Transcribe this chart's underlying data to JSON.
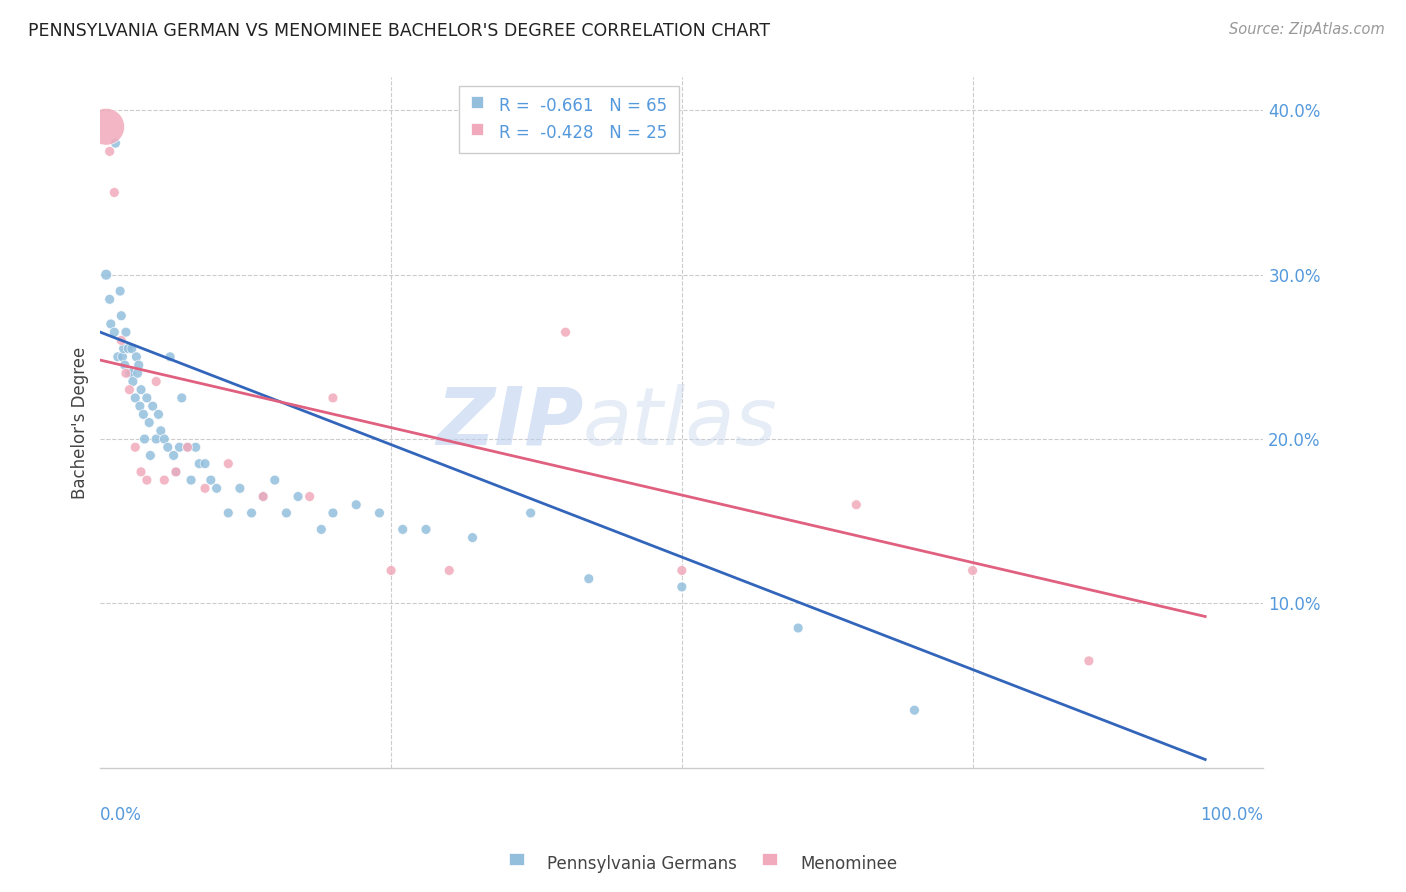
{
  "title": "PENNSYLVANIA GERMAN VS MENOMINEE BACHELOR'S DEGREE CORRELATION CHART",
  "source": "Source: ZipAtlas.com",
  "ylabel": "Bachelor's Degree",
  "watermark_zip": "ZIP",
  "watermark_atlas": "atlas",
  "blue_legend_r": "R = ",
  "blue_legend_rv": "-0.661",
  "blue_legend_n": "  N = 65",
  "pink_legend_r": "R = ",
  "pink_legend_rv": "-0.428",
  "pink_legend_n": "  N = 25",
  "blue_label": "Pennsylvania Germans",
  "pink_label": "Menominee",
  "xlim": [
    0,
    1.0
  ],
  "ylim": [
    0,
    0.42
  ],
  "yticks": [
    0.1,
    0.2,
    0.3,
    0.4
  ],
  "ytick_labels": [
    "10.0%",
    "20.0%",
    "30.0%",
    "40.0%"
  ],
  "blue_color": "#93bfdd",
  "pink_color": "#f0aabb",
  "blue_line_color": "#3366bb",
  "pink_line_color": "#e06080",
  "tick_color": "#5599dd",
  "grid_color": "#cccccc",
  "background_color": "#ffffff",
  "blue_scatter_x": [
    0.005,
    0.008,
    0.009,
    0.012,
    0.013,
    0.015,
    0.017,
    0.018,
    0.019,
    0.02,
    0.021,
    0.022,
    0.024,
    0.025,
    0.026,
    0.027,
    0.028,
    0.03,
    0.031,
    0.032,
    0.033,
    0.034,
    0.035,
    0.037,
    0.038,
    0.04,
    0.042,
    0.043,
    0.045,
    0.048,
    0.05,
    0.052,
    0.055,
    0.058,
    0.06,
    0.063,
    0.065,
    0.068,
    0.07,
    0.075,
    0.078,
    0.082,
    0.085,
    0.09,
    0.095,
    0.1,
    0.11,
    0.12,
    0.13,
    0.14,
    0.15,
    0.16,
    0.17,
    0.19,
    0.2,
    0.22,
    0.24,
    0.26,
    0.28,
    0.32,
    0.37,
    0.42,
    0.5,
    0.6,
    0.7
  ],
  "blue_scatter_y": [
    0.3,
    0.285,
    0.27,
    0.265,
    0.38,
    0.25,
    0.29,
    0.275,
    0.25,
    0.255,
    0.245,
    0.265,
    0.255,
    0.24,
    0.24,
    0.255,
    0.235,
    0.225,
    0.25,
    0.24,
    0.245,
    0.22,
    0.23,
    0.215,
    0.2,
    0.225,
    0.21,
    0.19,
    0.22,
    0.2,
    0.215,
    0.205,
    0.2,
    0.195,
    0.25,
    0.19,
    0.18,
    0.195,
    0.225,
    0.195,
    0.175,
    0.195,
    0.185,
    0.185,
    0.175,
    0.17,
    0.155,
    0.17,
    0.155,
    0.165,
    0.175,
    0.155,
    0.165,
    0.145,
    0.155,
    0.16,
    0.155,
    0.145,
    0.145,
    0.14,
    0.155,
    0.115,
    0.11,
    0.085,
    0.035
  ],
  "blue_scatter_sizes": [
    60,
    50,
    50,
    50,
    50,
    50,
    50,
    50,
    50,
    50,
    50,
    50,
    50,
    50,
    50,
    50,
    50,
    50,
    50,
    50,
    50,
    50,
    50,
    50,
    50,
    50,
    50,
    50,
    50,
    50,
    50,
    50,
    50,
    50,
    50,
    50,
    50,
    50,
    50,
    50,
    50,
    50,
    50,
    50,
    50,
    50,
    50,
    50,
    50,
    50,
    50,
    50,
    50,
    50,
    50,
    50,
    50,
    50,
    50,
    50,
    50,
    50,
    50,
    50,
    50
  ],
  "pink_scatter_x": [
    0.005,
    0.008,
    0.012,
    0.018,
    0.022,
    0.025,
    0.03,
    0.035,
    0.04,
    0.048,
    0.055,
    0.065,
    0.075,
    0.09,
    0.11,
    0.14,
    0.18,
    0.2,
    0.25,
    0.3,
    0.4,
    0.5,
    0.65,
    0.75,
    0.85
  ],
  "pink_scatter_y": [
    0.39,
    0.375,
    0.35,
    0.26,
    0.24,
    0.23,
    0.195,
    0.18,
    0.175,
    0.235,
    0.175,
    0.18,
    0.195,
    0.17,
    0.185,
    0.165,
    0.165,
    0.225,
    0.12,
    0.12,
    0.265,
    0.12,
    0.16,
    0.12,
    0.065
  ],
  "pink_scatter_sizes": [
    700,
    50,
    50,
    50,
    50,
    50,
    50,
    50,
    50,
    50,
    50,
    50,
    50,
    50,
    50,
    50,
    50,
    50,
    50,
    50,
    50,
    50,
    50,
    50,
    50
  ],
  "blue_regline_x": [
    0.0,
    0.95
  ],
  "blue_regline_y": [
    0.265,
    0.005
  ],
  "pink_regline_x": [
    0.0,
    0.95
  ],
  "pink_regline_y": [
    0.248,
    0.092
  ]
}
